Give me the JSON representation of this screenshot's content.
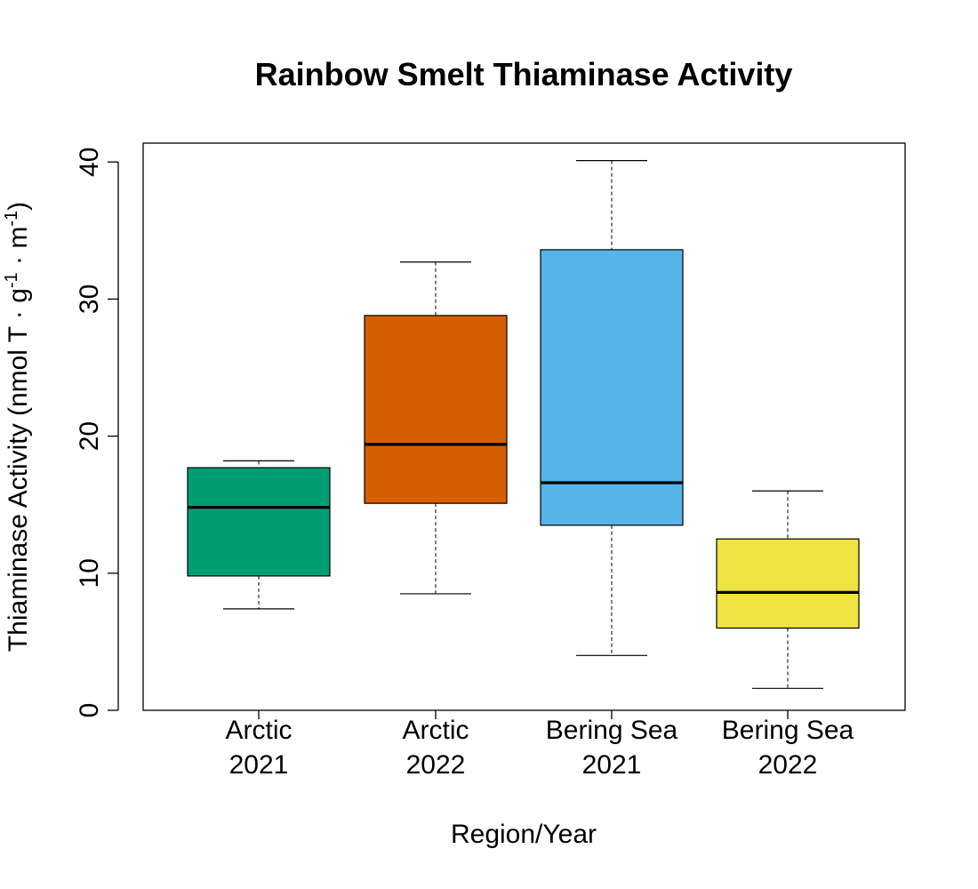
{
  "chart_data": {
    "type": "box",
    "title": "Rainbow Smelt Thiaminase Activity",
    "xlabel": "Region/Year",
    "ylabel": {
      "prefix": "Thiaminase Activity (nmol T · g",
      "sup1": "-1",
      "middle": " · m",
      "sup2": "-1",
      "suffix": ")"
    },
    "ylim": [
      0,
      42
    ],
    "yticks": [
      0,
      10,
      20,
      30,
      40
    ],
    "grid": false,
    "legend": "none",
    "categories": [
      {
        "line1": "Arctic",
        "line2": "2021"
      },
      {
        "line1": "Arctic",
        "line2": "2022"
      },
      {
        "line1": "Bering Sea",
        "line2": "2021"
      },
      {
        "line1": "Bering Sea",
        "line2": "2022"
      }
    ],
    "boxes": [
      {
        "whisker_low": 7.4,
        "q1": 9.8,
        "median": 14.8,
        "q3": 17.7,
        "whisker_high": 18.2,
        "color": "#009E73"
      },
      {
        "whisker_low": 8.5,
        "q1": 15.1,
        "median": 19.4,
        "q3": 28.8,
        "whisker_high": 32.7,
        "color": "#D55E00"
      },
      {
        "whisker_low": 4.0,
        "q1": 13.5,
        "median": 16.6,
        "q3": 33.6,
        "whisker_high": 40.1,
        "color": "#56B4E9"
      },
      {
        "whisker_low": 1.6,
        "q1": 6.0,
        "median": 8.6,
        "q3": 12.5,
        "whisker_high": 16.0,
        "color": "#F0E442"
      }
    ]
  }
}
